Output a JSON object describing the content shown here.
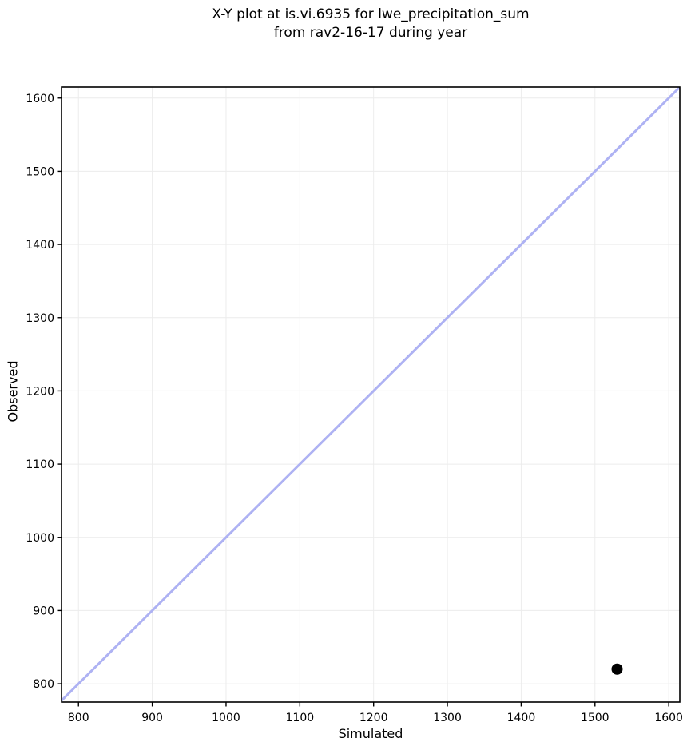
{
  "figure": {
    "background": "#ffffff"
  },
  "chart_data": {
    "type": "scatter",
    "title_lines": [
      "X-Y plot at is.vi.6935 for lwe_precipitation_sum",
      "from rav2-16-17 during year"
    ],
    "title": "X-Y plot at is.vi.6935 for lwe_precipitation_sum from rav2-16-17 during year",
    "xlabel": "Simulated",
    "ylabel": "Observed",
    "xlim": [
      777,
      1615
    ],
    "ylim": [
      775,
      1615
    ],
    "xticks": [
      800,
      900,
      1000,
      1100,
      1200,
      1300,
      1400,
      1500,
      1600
    ],
    "yticks": [
      800,
      900,
      1000,
      1100,
      1200,
      1300,
      1400,
      1500,
      1600
    ],
    "grid": true,
    "legend": false,
    "series": [
      {
        "name": "identity-line",
        "type": "line",
        "color": "#aeb2f3",
        "linewidth": 3,
        "points": [
          {
            "x": 770,
            "y": 770
          },
          {
            "x": 1620,
            "y": 1620
          }
        ]
      },
      {
        "name": "observations",
        "type": "scatter",
        "marker": "circle",
        "color": "#000000",
        "marker_radius": 7,
        "points": [
          {
            "x": 1530,
            "y": 820
          }
        ]
      }
    ],
    "styles": {
      "grid_color": "#ececec",
      "spine_color": "#000000",
      "tick_color": "#000000",
      "text_color": "#000000"
    }
  }
}
